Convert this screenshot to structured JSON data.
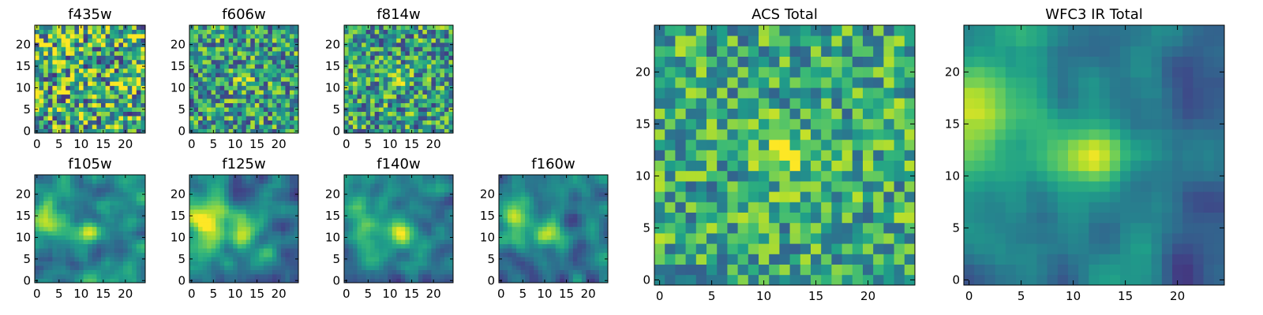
{
  "chart_data": [
    {
      "type": "heatmap",
      "title": "f435w",
      "xticks": [
        "0",
        "5",
        "10",
        "15",
        "20"
      ],
      "yticks": [
        "0",
        "5",
        "10",
        "15",
        "20"
      ],
      "xlim": [
        -0.5,
        24.5
      ],
      "ylim": [
        -0.5,
        24.5
      ],
      "grid": false,
      "colormap": "viridis",
      "blobs": [],
      "noise": 0.95,
      "base": 0.62,
      "seed": 11
    },
    {
      "type": "heatmap",
      "title": "f606w",
      "xticks": [
        "0",
        "5",
        "10",
        "15",
        "20"
      ],
      "yticks": [
        "0",
        "5",
        "10",
        "15",
        "20"
      ],
      "xlim": [
        -0.5,
        24.5
      ],
      "ylim": [
        -0.5,
        24.5
      ],
      "grid": false,
      "colormap": "viridis",
      "blobs": [
        {
          "x": 12,
          "y": 12,
          "amp": 0.35,
          "sigma": 1.5
        }
      ],
      "noise": 0.75,
      "base": 0.55,
      "seed": 23
    },
    {
      "type": "heatmap",
      "title": "f814w",
      "xticks": [
        "0",
        "5",
        "10",
        "15",
        "20"
      ],
      "yticks": [
        "0",
        "5",
        "10",
        "15",
        "20"
      ],
      "xlim": [
        -0.5,
        24.5
      ],
      "ylim": [
        -0.5,
        24.5
      ],
      "grid": false,
      "colormap": "viridis",
      "blobs": [
        {
          "x": 12,
          "y": 12,
          "amp": 0.4,
          "sigma": 1.5
        }
      ],
      "noise": 0.75,
      "base": 0.55,
      "seed": 37
    },
    {
      "type": "heatmap",
      "title": "f105w",
      "xticks": [
        "0",
        "5",
        "10",
        "15",
        "20"
      ],
      "yticks": [
        "0",
        "5",
        "10",
        "15",
        "20"
      ],
      "xlim": [
        -0.5,
        24.5
      ],
      "ylim": [
        -0.5,
        24.5
      ],
      "grid": false,
      "colormap": "viridis",
      "blobs": [
        {
          "x": 2,
          "y": 14,
          "amp": 0.45,
          "sigma": 3
        },
        {
          "x": 12,
          "y": 11,
          "amp": 0.45,
          "sigma": 2
        }
      ],
      "noise": 0.45,
      "base": 0.45,
      "seed": 41,
      "smooth": true
    },
    {
      "type": "heatmap",
      "title": "f125w",
      "xticks": [
        "0",
        "5",
        "10",
        "15",
        "20"
      ],
      "yticks": [
        "0",
        "5",
        "10",
        "15",
        "20"
      ],
      "xlim": [
        -0.5,
        24.5
      ],
      "ylim": [
        -0.5,
        24.5
      ],
      "grid": false,
      "colormap": "viridis",
      "blobs": [
        {
          "x": 3,
          "y": 14,
          "amp": 0.5,
          "sigma": 3.5
        },
        {
          "x": 12,
          "y": 11,
          "amp": 0.45,
          "sigma": 2.2
        }
      ],
      "noise": 0.4,
      "base": 0.45,
      "seed": 53,
      "smooth": true
    },
    {
      "type": "heatmap",
      "title": "f140w",
      "xticks": [
        "0",
        "5",
        "10",
        "15",
        "20"
      ],
      "yticks": [
        "0",
        "5",
        "10",
        "15",
        "20"
      ],
      "xlim": [
        -0.5,
        24.5
      ],
      "ylim": [
        -0.5,
        24.5
      ],
      "grid": false,
      "colormap": "viridis",
      "blobs": [
        {
          "x": 3,
          "y": 15,
          "amp": 0.45,
          "sigma": 3.5
        },
        {
          "x": 12,
          "y": 11,
          "amp": 0.45,
          "sigma": 2.5
        }
      ],
      "noise": 0.4,
      "base": 0.42,
      "seed": 67,
      "smooth": true
    },
    {
      "type": "heatmap",
      "title": "f160w",
      "xticks": [
        "0",
        "5",
        "10",
        "15",
        "20"
      ],
      "yticks": [
        "0",
        "5",
        "10",
        "15",
        "20"
      ],
      "xlim": [
        -0.5,
        24.5
      ],
      "ylim": [
        -0.5,
        24.5
      ],
      "grid": false,
      "colormap": "viridis",
      "blobs": [
        {
          "x": 3,
          "y": 14,
          "amp": 0.45,
          "sigma": 3.5
        },
        {
          "x": 11,
          "y": 11,
          "amp": 0.5,
          "sigma": 2.3
        }
      ],
      "noise": 0.4,
      "base": 0.4,
      "seed": 79,
      "smooth": true
    },
    {
      "type": "heatmap",
      "title": "ACS Total",
      "xticks": [
        "0",
        "5",
        "10",
        "15",
        "20"
      ],
      "yticks": [
        "0",
        "5",
        "10",
        "15",
        "20"
      ],
      "xlim": [
        -0.5,
        24.5
      ],
      "ylim": [
        -0.5,
        24.5
      ],
      "grid": false,
      "colormap": "viridis",
      "blobs": [
        {
          "x": 12,
          "y": 12,
          "amp": 0.35,
          "sigma": 1.6
        }
      ],
      "noise": 0.6,
      "base": 0.6,
      "seed": 97
    },
    {
      "type": "heatmap",
      "title": "WFC3 IR Total",
      "xticks": [
        "0",
        "5",
        "10",
        "15",
        "20"
      ],
      "yticks": [
        "0",
        "5",
        "10",
        "15",
        "20"
      ],
      "xlim": [
        -0.5,
        24.5
      ],
      "ylim": [
        -0.5,
        24.5
      ],
      "grid": false,
      "colormap": "viridis",
      "blobs": [
        {
          "x": 0,
          "y": 16,
          "amp": 0.45,
          "sigma": 4
        },
        {
          "x": 12,
          "y": 12,
          "amp": 0.55,
          "sigma": 2.4
        }
      ],
      "noise": 0.28,
      "base": 0.42,
      "seed": 131,
      "smooth": true,
      "darkRight": true
    }
  ]
}
